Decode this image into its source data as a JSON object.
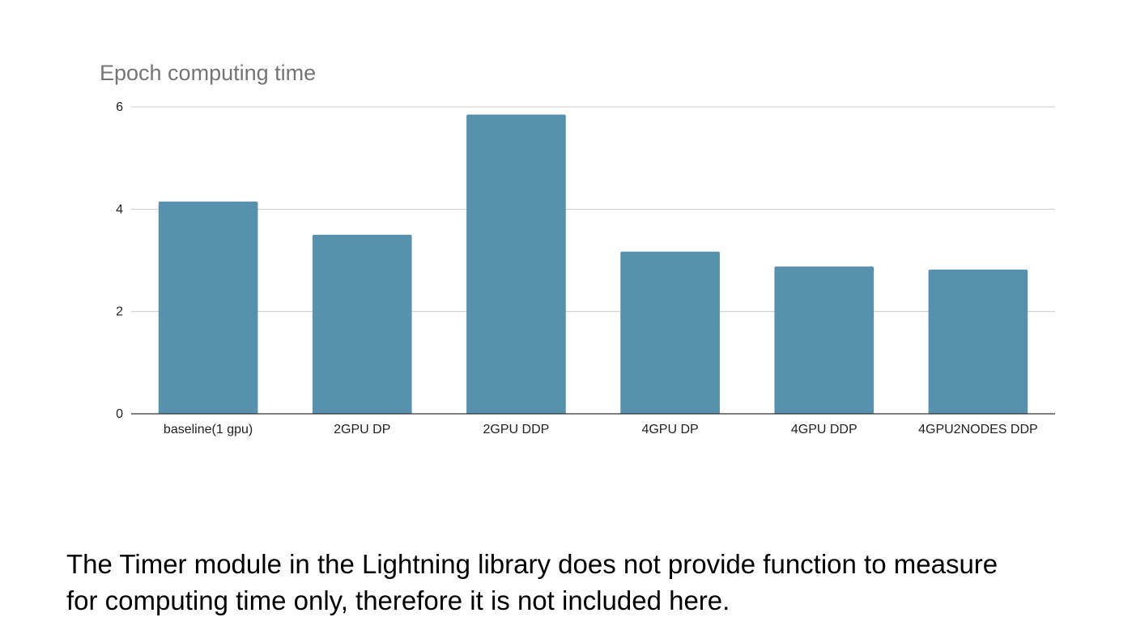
{
  "chart_data": {
    "type": "bar",
    "title": "Epoch computing time",
    "xlabel": "",
    "ylabel": "",
    "categories": [
      "baseline(1 gpu)",
      "2GPU DP",
      "2GPU DDP",
      "4GPU DP",
      "4GPU DDP",
      "4GPU2NODES DDP"
    ],
    "values": [
      4.15,
      3.5,
      5.85,
      3.17,
      2.88,
      2.82
    ],
    "ylim": [
      0,
      6
    ],
    "yticks": [
      0,
      2,
      4,
      6
    ],
    "grid": true,
    "legend": "none",
    "bar_color": "#5891ae"
  },
  "caption": {
    "line1": "The Timer module in the Lightning library does not provide function to measure",
    "line2": "for computing time only, therefore it is not included here."
  }
}
